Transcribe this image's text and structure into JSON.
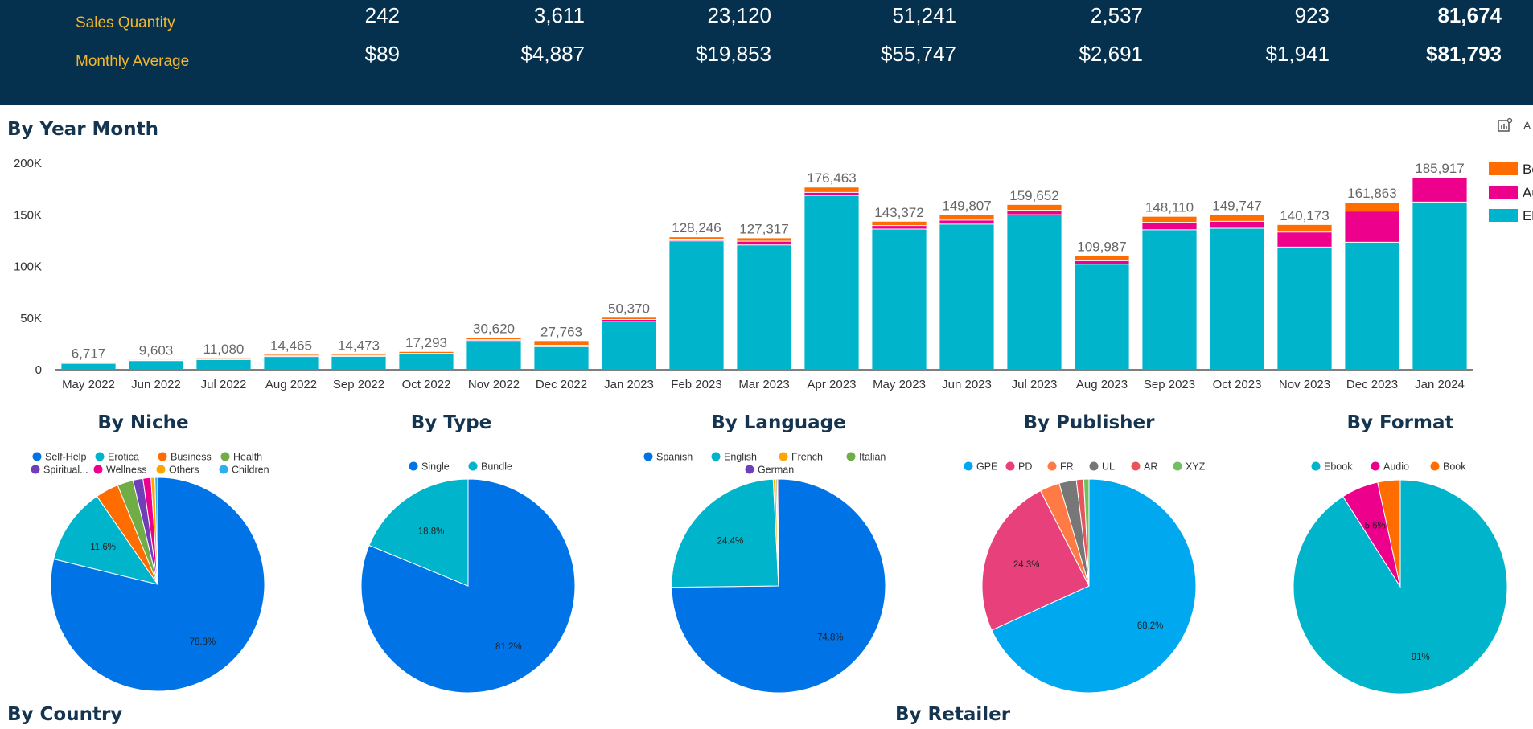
{
  "header": {
    "rows": [
      {
        "label": "Sales  Quantity",
        "values": [
          "242",
          "3,611",
          "23,120",
          "51,241",
          "2,537",
          "923"
        ],
        "total": "81,674"
      },
      {
        "label": "Monthly Average",
        "values": [
          "$89",
          "$4,887",
          "$19,853",
          "$55,747",
          "$2,691",
          "$1,941"
        ],
        "total": "$81,793"
      }
    ]
  },
  "sections": {
    "year_month": "By Year Month",
    "country": "By Country",
    "retailer": "By Retailer"
  },
  "corner_label": "A",
  "chart_data": [
    {
      "type": "bar",
      "stacked": true,
      "title": "By Year Month",
      "categories": [
        "May 2022",
        "Jun 2022",
        "Jul 2022",
        "Aug 2022",
        "Sep 2022",
        "Oct 2022",
        "Nov 2022",
        "Dec 2022",
        "Jan 2023",
        "Feb 2023",
        "Mar 2023",
        "Apr 2023",
        "May 2023",
        "Jun 2023",
        "Jul 2023",
        "Aug 2023",
        "Sep 2023",
        "Oct 2023",
        "Nov 2023",
        "Dec 2023",
        "Jan 2024"
      ],
      "totals": [
        "6,717",
        "9,603",
        "11,080",
        "14,465",
        "14,473",
        "17,293",
        "30,620",
        "27,763",
        "50,370",
        "128,246",
        "127,317",
        "176,463",
        "143,372",
        "149,807",
        "159,652",
        "109,987",
        "148,110",
        "149,747",
        "140,173",
        "161,863",
        "185,917"
      ],
      "series": [
        {
          "name": "Eb",
          "color": "#00b4cc",
          "values": [
            6100,
            8800,
            9800,
            12700,
            12900,
            15200,
            28200,
            22400,
            46900,
            124700,
            120800,
            168800,
            136200,
            141000,
            150100,
            102100,
            135500,
            137000,
            118800,
            123400,
            162400
          ]
        },
        {
          "name": "Au",
          "color": "#ec008c",
          "values": [
            300,
            400,
            500,
            700,
            600,
            700,
            900,
            1200,
            1700,
            1800,
            3600,
            2900,
            3400,
            3800,
            4300,
            3400,
            7200,
            6700,
            14500,
            30200,
            23517
          ]
        },
        {
          "name": "Bo",
          "color": "#ff6d00",
          "values": [
            317,
            403,
            780,
            1065,
            973,
            1393,
            1520,
            4163,
            1770,
            1746,
            2917,
            4763,
            3772,
            5007,
            5252,
            4487,
            5410,
            6047,
            6873,
            8263,
            0
          ]
        }
      ],
      "yticks": [
        "0",
        "50K",
        "100K",
        "150K",
        "200K"
      ],
      "ylim": [
        0,
        200000
      ],
      "legend_position": "right"
    },
    {
      "type": "pie",
      "title": "By Niche",
      "labels": [
        "Self-Help",
        "Erotica",
        "Business",
        "Health",
        "Spiritual...",
        "Wellness",
        "Others",
        "Children"
      ],
      "values": [
        78.8,
        11.6,
        3.5,
        2.4,
        1.5,
        1.2,
        0.6,
        0.4
      ],
      "colors": [
        "#0073e6",
        "#00b4cc",
        "#ff6d00",
        "#70ad47",
        "#6f3fba",
        "#ec008c",
        "#ffa600",
        "#2bb0ef"
      ],
      "shown_labels": [
        "78.8%",
        "11.6%",
        "",
        "",
        "",
        "",
        "",
        ""
      ]
    },
    {
      "type": "pie",
      "title": "By Type",
      "labels": [
        "Single",
        "Bundle"
      ],
      "values": [
        81.2,
        18.8
      ],
      "colors": [
        "#0073e6",
        "#00b4cc"
      ],
      "shown_labels": [
        "81.2%",
        "18.8%"
      ]
    },
    {
      "type": "pie",
      "title": "By Language",
      "labels": [
        "Spanish",
        "English",
        "French",
        "Italian",
        "German"
      ],
      "values": [
        74.8,
        24.4,
        0.4,
        0.2,
        0.2
      ],
      "colors": [
        "#0073e6",
        "#00b4cc",
        "#ffa600",
        "#70ad47",
        "#6f3fba"
      ],
      "shown_labels": [
        "74.8%",
        "24.4%",
        "",
        "",
        ""
      ]
    },
    {
      "type": "pie",
      "title": "By Publisher",
      "labels": [
        "GPE",
        "PD",
        "FR",
        "UL",
        "AR",
        "XYZ"
      ],
      "values": [
        68.2,
        24.3,
        3.0,
        2.6,
        1.1,
        0.8
      ],
      "colors": [
        "#00a8f0",
        "#e8407a",
        "#ff7a45",
        "#777777",
        "#e8545c",
        "#70c060"
      ],
      "shown_labels": [
        "68.2%",
        "24.3%",
        "",
        "",
        "",
        ""
      ]
    },
    {
      "type": "pie",
      "title": "By Format",
      "labels": [
        "Ebook",
        "Audio",
        "Book"
      ],
      "values": [
        91.0,
        5.6,
        3.4
      ],
      "colors": [
        "#00b4cc",
        "#ec008c",
        "#ff6d00"
      ],
      "shown_labels": [
        "91%",
        "5.6%",
        ""
      ]
    }
  ]
}
